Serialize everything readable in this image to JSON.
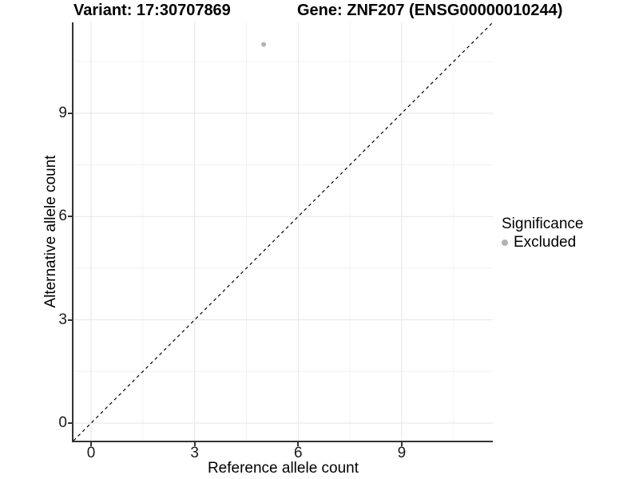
{
  "chart_data": {
    "type": "scatter",
    "titles": {
      "left": "Variant: 17:30707869",
      "right": "Gene: ZNF207 (ENSG00000010244)"
    },
    "xlabel": "Reference allele count",
    "ylabel": "Alternative allele count",
    "xlim": [
      -0.51,
      11.64
    ],
    "ylim": [
      -0.51,
      11.64
    ],
    "x_ticks": [
      0,
      3,
      6,
      9
    ],
    "y_ticks": [
      0,
      3,
      6,
      9
    ],
    "x_minor_ticks": [
      1.5,
      4.5,
      7.5,
      10.5
    ],
    "y_minor_ticks": [
      1.5,
      4.5,
      7.5,
      10.5
    ],
    "grid": true,
    "series": [
      {
        "name": "Excluded",
        "color": "#b3b3b3",
        "points": [
          {
            "x": 5,
            "y": 11
          }
        ]
      }
    ],
    "reference_line": {
      "type": "identity",
      "style": "dashed",
      "color": "#000000"
    },
    "legend": {
      "position": "right",
      "title": "Significance",
      "items": [
        {
          "label": "Excluded",
          "color": "#b3b3b3"
        }
      ]
    },
    "colors": {
      "background": "#ffffff",
      "grid_major": "#e5e5e5",
      "grid_minor": "#f2f2f2",
      "axis": "#333333",
      "tick_text": "#1a1a1a",
      "text": "#000000"
    }
  }
}
